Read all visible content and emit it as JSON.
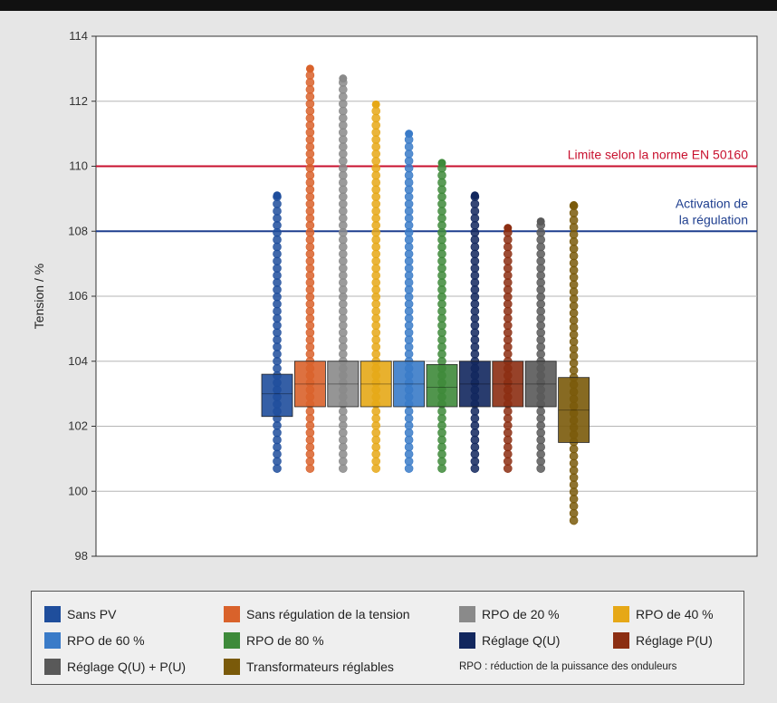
{
  "chart_data": {
    "type": "box-dot",
    "ylabel": "Tension / %",
    "ylim": [
      98,
      114
    ],
    "yticks": [
      98,
      100,
      102,
      104,
      106,
      108,
      110,
      112,
      114
    ],
    "grid": true,
    "reference_lines": [
      {
        "value": 110,
        "label": "Limite selon la norme EN 50160",
        "color": "#c8102e"
      },
      {
        "value": 108,
        "label_lines": [
          "Activation de",
          "la régulation"
        ],
        "color": "#1f3f8f"
      }
    ],
    "series": [
      {
        "name": "Sans PV",
        "color": "#1f4e9c",
        "min": 100.7,
        "max": 109.1,
        "q1": 102.3,
        "q3": 103.6,
        "median": 103.0
      },
      {
        "name": "Sans régulation de la tension",
        "color": "#d9622b",
        "min": 100.7,
        "max": 113.0,
        "q1": 102.6,
        "q3": 104.0,
        "median": 103.3
      },
      {
        "name": "RPO de 20 %",
        "color": "#8a8a8a",
        "min": 100.7,
        "max": 112.7,
        "q1": 102.6,
        "q3": 104.0,
        "median": 103.3
      },
      {
        "name": "RPO de 40 %",
        "color": "#e6a817",
        "min": 100.7,
        "max": 111.9,
        "q1": 102.6,
        "q3": 104.0,
        "median": 103.3
      },
      {
        "name": "RPO de 60 %",
        "color": "#3a7bc8",
        "min": 100.7,
        "max": 111.0,
        "q1": 102.6,
        "q3": 104.0,
        "median": 103.3
      },
      {
        "name": "RPO de 80 %",
        "color": "#3e8a3a",
        "min": 100.7,
        "max": 110.1,
        "q1": 102.6,
        "q3": 103.9,
        "median": 103.2
      },
      {
        "name": "Réglage Q(U)",
        "color": "#12275e",
        "min": 100.7,
        "max": 109.1,
        "q1": 102.6,
        "q3": 104.0,
        "median": 103.3
      },
      {
        "name": "Réglage P(U)",
        "color": "#8c2e12",
        "min": 100.7,
        "max": 108.1,
        "q1": 102.6,
        "q3": 104.0,
        "median": 103.3
      },
      {
        "name": "Réglage Q(U) + P(U)",
        "color": "#595959",
        "min": 100.7,
        "max": 108.3,
        "q1": 102.6,
        "q3": 104.0,
        "median": 103.3
      },
      {
        "name": "Transformateurs réglables",
        "color": "#7a5a0a",
        "min": 99.1,
        "max": 108.8,
        "q1": 101.5,
        "q3": 103.5,
        "median": 102.5
      }
    ],
    "legend_note": "RPO : réduction de la puissance des onduleurs"
  }
}
